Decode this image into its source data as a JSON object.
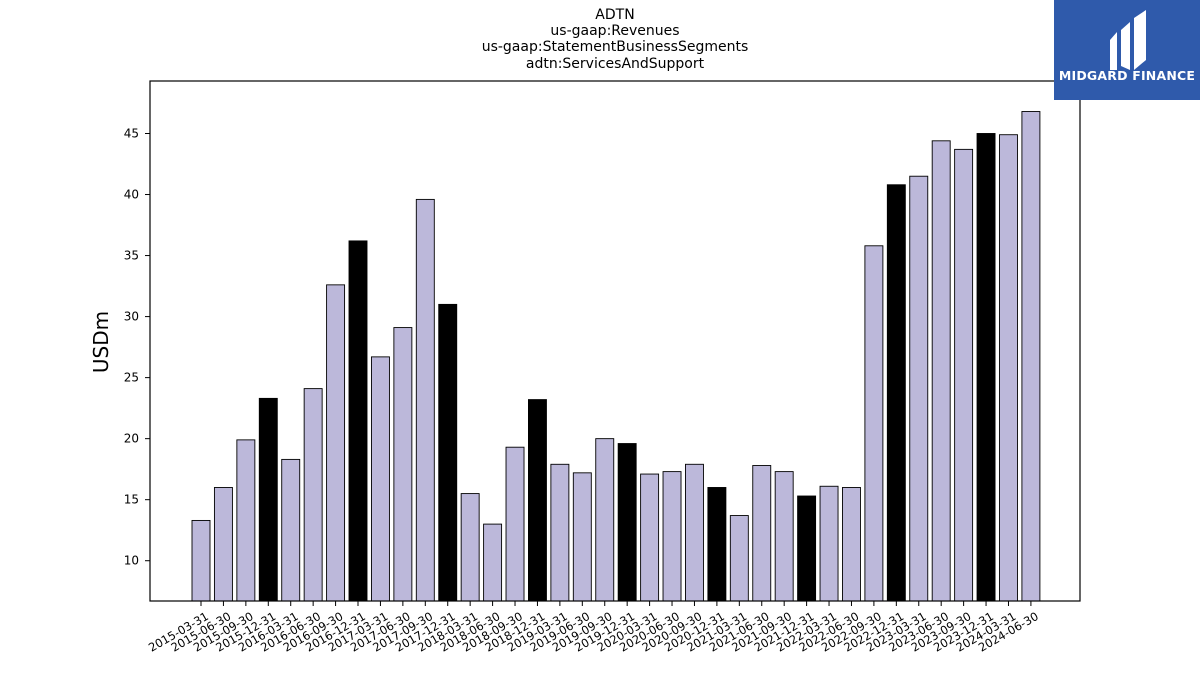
{
  "title_lines": [
    "ADTN",
    "us-gaap:Revenues",
    "us-gaap:StatementBusinessSegments",
    "adtn:ServicesAndSupport"
  ],
  "logo": {
    "text": "MIDGARD FINANCE",
    "background": "#2f5aab"
  },
  "colors": {
    "regular": "#bcb8da",
    "year_end": "#000000",
    "edge": "#000000"
  },
  "chart_data": {
    "type": "bar",
    "ylabel": "USDm",
    "ylim": [
      6.7,
      49.3
    ],
    "yticks": [
      10,
      15,
      20,
      25,
      30,
      35,
      40,
      45
    ],
    "categories": [
      "2015-03-31",
      "2015-06-30",
      "2015-09-30",
      "2015-12-31",
      "2016-03-31",
      "2016-06-30",
      "2016-09-30",
      "2016-12-31",
      "2017-03-31",
      "2017-06-30",
      "2017-09-30",
      "2017-12-31",
      "2018-03-31",
      "2018-06-30",
      "2018-09-30",
      "2018-12-31",
      "2019-03-31",
      "2019-06-30",
      "2019-09-30",
      "2019-12-31",
      "2020-03-31",
      "2020-06-30",
      "2020-09-30",
      "2020-12-31",
      "2021-03-31",
      "2021-06-30",
      "2021-09-30",
      "2021-12-31",
      "2022-03-31",
      "2022-06-30",
      "2022-09-30",
      "2022-12-31",
      "2023-03-31",
      "2023-06-30",
      "2023-09-30",
      "2023-12-31",
      "2024-03-31",
      "2024-06-30"
    ],
    "values": [
      13.3,
      16.0,
      19.9,
      23.3,
      18.3,
      24.1,
      32.6,
      36.2,
      26.7,
      29.1,
      39.6,
      31.0,
      15.5,
      13.0,
      19.3,
      23.2,
      17.9,
      17.2,
      20.0,
      19.6,
      17.1,
      17.3,
      17.9,
      16.0,
      13.7,
      17.8,
      17.3,
      15.3,
      16.1,
      16.0,
      35.8,
      40.8,
      41.5,
      44.4,
      43.7,
      45.0,
      44.9,
      46.8
    ],
    "year_end_highlight": [
      false,
      false,
      false,
      true,
      false,
      false,
      false,
      true,
      false,
      false,
      false,
      true,
      false,
      false,
      false,
      true,
      false,
      false,
      false,
      true,
      false,
      false,
      false,
      true,
      false,
      false,
      false,
      true,
      false,
      false,
      false,
      true,
      false,
      false,
      false,
      true,
      false,
      false
    ]
  }
}
